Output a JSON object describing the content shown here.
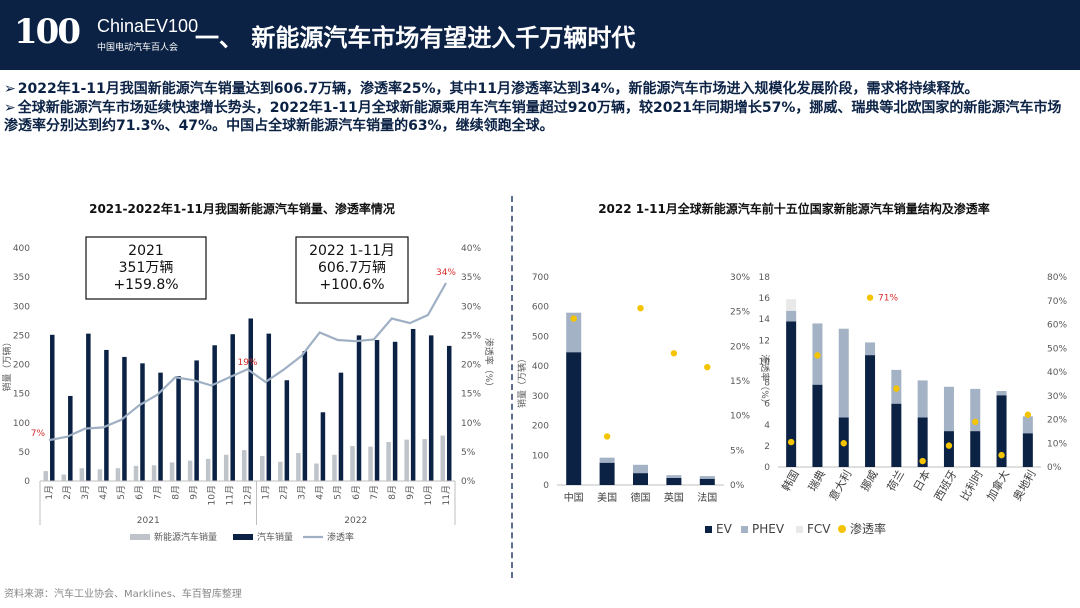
{
  "header": {
    "logo_number": "100",
    "logo_english": "ChinaEV100",
    "logo_chinese": "中国电动汽车百人会",
    "title": "一、 新能源汽车市场有望进入千万辆时代"
  },
  "bullets": [
    "2022年1-11月我国新能源汽车销量达到606.7万辆，渗透率25%，其中11月渗透率达到34%，新能源汽车市场进入规模化发展阶段，需求将持续释放。",
    "全球新能源汽车市场延续快速增长势头，2022年1-11月全球新能源乘用车汽车销量超过920万辆，较2021年同期增长57%，挪威、瑞典等北欧国家的新能源汽车市场渗透率分别达到约71.3%、47%。中国占全球新能源汽车销量的63%，继续领跑全球。"
  ],
  "bullet_marker": "➢",
  "source": "资料来源：汽车工业协会、Marklines、车百智库整理",
  "colors": {
    "navy": "#0b2245",
    "grey": "#bfc4ca",
    "line": "#a9b7c9",
    "pen": "#9fb0c4",
    "fcv": "#e9e9e9",
    "dot": "#f5c400",
    "red": "#d62b2b"
  },
  "chart_data": [
    {
      "type": "bar",
      "title": "2021-2022年1-11月我国新能源汽车销量、渗透率情况",
      "ylabel": "销量（万辆）",
      "y2label": "渗透率（%）",
      "ylim": [
        0,
        400
      ],
      "y2lim": [
        0,
        40
      ],
      "yticks": [
        "0",
        "50",
        "100",
        "150",
        "200",
        "250",
        "300",
        "350",
        "400"
      ],
      "y2ticks": [
        "0%",
        "5%",
        "10%",
        "15%",
        "20%",
        "25%",
        "30%",
        "35%",
        "40%"
      ],
      "categories": [
        "1月",
        "2月",
        "3月",
        "4月",
        "5月",
        "6月",
        "7月",
        "8月",
        "9月",
        "10月",
        "11月",
        "12月",
        "1月",
        "2月",
        "3月",
        "4月",
        "5月",
        "6月",
        "7月",
        "8月",
        "9月",
        "10月",
        "11月"
      ],
      "groups": [
        {
          "label": "2021",
          "start": 0,
          "end": 11
        },
        {
          "label": "2022",
          "start": 12,
          "end": 22
        }
      ],
      "series": [
        {
          "name": "新能源汽车销量",
          "kind": "bar",
          "values": [
            17,
            11,
            22,
            20,
            22,
            26,
            27,
            32,
            35,
            38,
            45,
            53,
            43,
            33,
            48,
            30,
            45,
            60,
            59,
            67,
            71,
            72,
            78
          ]
        },
        {
          "name": "汽车销量",
          "kind": "bar",
          "values": [
            251,
            146,
            253,
            225,
            213,
            202,
            186,
            180,
            207,
            233,
            252,
            279,
            253,
            173,
            223,
            118,
            186,
            250,
            242,
            239,
            261,
            250,
            232
          ]
        },
        {
          "name": "渗透率",
          "kind": "line",
          "values": [
            7.0,
            7.6,
            9.0,
            9.2,
            10.5,
            13.0,
            14.8,
            17.8,
            17.3,
            16.4,
            17.8,
            19.2,
            17.0,
            19.1,
            21.5,
            25.5,
            24.2,
            24.0,
            24.3,
            27.9,
            27.1,
            28.5,
            34.0
          ]
        }
      ],
      "annotations": [
        {
          "text": "7%",
          "index": 0
        },
        {
          "text": "19%",
          "index": 11
        },
        {
          "text": "34%",
          "index": 22
        }
      ],
      "boxes": [
        {
          "lines": [
            "2021",
            "351万辆",
            "+159.8%"
          ]
        },
        {
          "lines": [
            "2022 1-11月",
            "606.7万辆",
            "+100.6%"
          ]
        }
      ],
      "legend": "bottom"
    },
    {
      "type": "bar",
      "title": "2022 1-11月全球新能源汽车前十五位国家新能源汽车销量结构及渗透率",
      "ylabel": "销量（万辆）",
      "y2label": "渗透率（%）",
      "ylim": [
        0,
        700
      ],
      "y2lim": [
        0,
        30
      ],
      "yticks": [
        "0",
        "100",
        "200",
        "300",
        "400",
        "500",
        "600",
        "700"
      ],
      "y2ticks": [
        "0%",
        "5%",
        "10%",
        "15%",
        "20%",
        "25%",
        "30%"
      ],
      "categories": [
        "中国",
        "美国",
        "德国",
        "英国",
        "法国"
      ],
      "series": [
        {
          "name": "EV",
          "values": [
            447,
            75,
            40,
            24,
            21
          ]
        },
        {
          "name": "PHEV",
          "values": [
            133,
            17,
            28,
            9,
            9
          ]
        },
        {
          "name": "FCV",
          "values": [
            0.4,
            0.2,
            0,
            0,
            0
          ]
        },
        {
          "name": "渗透率",
          "kind": "scatter",
          "values": [
            24.0,
            7.0,
            25.5,
            19.0,
            17.0
          ]
        }
      ]
    },
    {
      "type": "bar",
      "ylim": [
        0,
        18
      ],
      "y2lim": [
        0,
        80
      ],
      "yticks": [
        "0",
        "2",
        "4",
        "6",
        "8",
        "10",
        "12",
        "14",
        "16",
        "18"
      ],
      "y2ticks": [
        "0%",
        "10%",
        "20%",
        "30%",
        "40%",
        "50%",
        "60%",
        "70%",
        "80%"
      ],
      "categories": [
        "韩国",
        "瑞典",
        "意大利",
        "挪威",
        "荷兰",
        "日本",
        "西班牙",
        "比利时",
        "加拿大",
        "奥地利"
      ],
      "series": [
        {
          "name": "EV",
          "values": [
            13.8,
            7.8,
            4.7,
            10.6,
            6.0,
            4.7,
            3.4,
            3.4,
            6.8,
            3.2
          ]
        },
        {
          "name": "PHEV",
          "values": [
            1.0,
            5.8,
            8.4,
            1.2,
            3.2,
            3.5,
            4.2,
            4.0,
            0.4,
            1.6
          ]
        },
        {
          "name": "FCV",
          "values": [
            1.1,
            0,
            0,
            0,
            0,
            0,
            0,
            0,
            0,
            0
          ]
        },
        {
          "name": "渗透率",
          "kind": "scatter",
          "values": [
            10.5,
            47.0,
            10.0,
            71.3,
            33.0,
            2.5,
            9.0,
            19.0,
            5.0,
            22.0
          ]
        }
      ],
      "annotations": [
        {
          "text": "71%",
          "index": 3
        }
      ],
      "legend": "bottom"
    }
  ]
}
